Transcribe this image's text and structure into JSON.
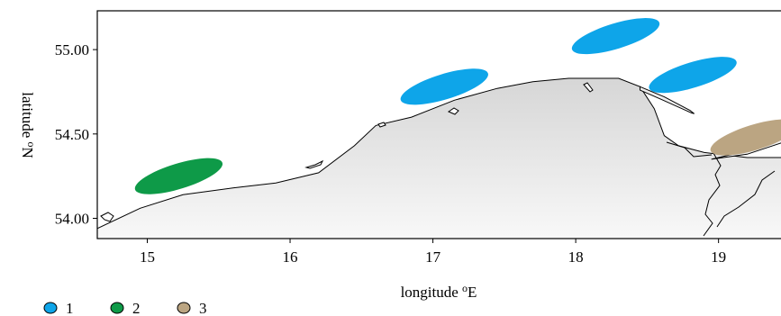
{
  "chart_data": {
    "type": "map",
    "xlabel": "longitude ",
    "xlabel_sup": "o",
    "xlabel_tail": "E",
    "ylabel": "latitude ",
    "ylabel_sup": "o",
    "ylabel_tail": "N",
    "xlim": [
      14.65,
      19.45
    ],
    "ylim": [
      53.88,
      55.23
    ],
    "x_ticks": [
      15,
      16,
      17,
      18,
      19
    ],
    "x_tick_labels": [
      "15",
      "16",
      "17",
      "18",
      "19"
    ],
    "y_ticks": [
      54.0,
      54.5,
      55.0
    ],
    "y_tick_labels": [
      "54.00",
      "54.50",
      "55.00"
    ],
    "legend": {
      "position": "bottom-left",
      "entries": [
        {
          "label": "1",
          "color": "#0ea5e9"
        },
        {
          "label": "2",
          "color": "#0e9a48"
        },
        {
          "label": "3",
          "color": "#bba582"
        }
      ]
    },
    "regions": [
      {
        "group": "1",
        "lon": 17.08,
        "lat": 54.78,
        "rx_deg": 0.32,
        "ry_deg": 0.075,
        "rotate": -17
      },
      {
        "group": "1",
        "lon": 18.28,
        "lat": 55.08,
        "rx_deg": 0.32,
        "ry_deg": 0.075,
        "rotate": -17
      },
      {
        "group": "1",
        "lon": 18.82,
        "lat": 54.85,
        "rx_deg": 0.32,
        "ry_deg": 0.075,
        "rotate": -17
      },
      {
        "group": "2",
        "lon": 15.22,
        "lat": 54.25,
        "rx_deg": 0.32,
        "ry_deg": 0.075,
        "rotate": -17
      },
      {
        "group": "3",
        "lon": 19.25,
        "lat": 54.48,
        "rx_deg": 0.32,
        "ry_deg": 0.075,
        "rotate": -17
      }
    ],
    "coastline": [
      [
        14.65,
        53.94
      ],
      [
        14.95,
        54.06
      ],
      [
        15.25,
        54.14
      ],
      [
        15.6,
        54.18
      ],
      [
        15.9,
        54.21
      ],
      [
        16.2,
        54.27
      ],
      [
        16.45,
        54.43
      ],
      [
        16.6,
        54.55
      ],
      [
        16.85,
        54.6
      ],
      [
        17.15,
        54.7
      ],
      [
        17.45,
        54.77
      ],
      [
        17.7,
        54.81
      ],
      [
        17.95,
        54.83
      ],
      [
        18.3,
        54.83
      ],
      [
        18.45,
        54.78
      ],
      [
        18.55,
        54.65
      ],
      [
        18.62,
        54.49
      ],
      [
        18.72,
        54.43
      ],
      [
        18.9,
        54.39
      ],
      [
        19.2,
        54.36
      ],
      [
        19.45,
        54.36
      ]
    ],
    "hel_peninsula": [
      [
        18.45,
        54.78
      ],
      [
        18.62,
        54.72
      ],
      [
        18.8,
        54.64
      ],
      [
        18.83,
        54.62
      ],
      [
        18.81,
        54.625
      ],
      [
        18.6,
        54.705
      ],
      [
        18.45,
        54.76
      ]
    ],
    "vistula_spit": [
      [
        19.45,
        54.45
      ],
      [
        19.2,
        54.38
      ],
      [
        18.95,
        54.35
      ],
      [
        19.0,
        54.36
      ],
      [
        19.2,
        54.4
      ],
      [
        19.45,
        54.47
      ]
    ]
  }
}
